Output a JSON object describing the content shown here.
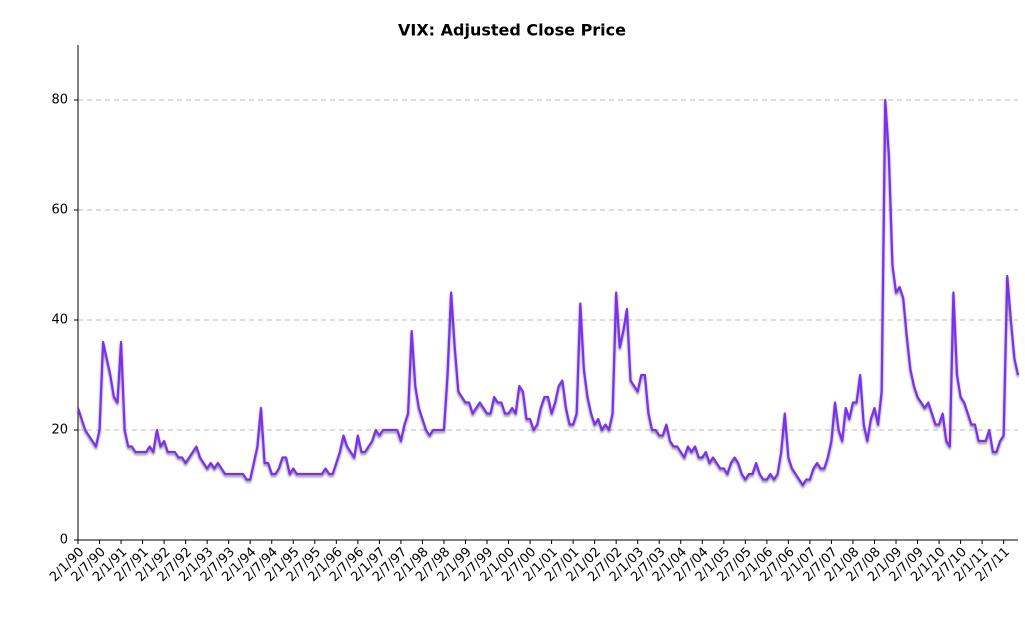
{
  "chart_data": {
    "type": "line",
    "title": "VIX: Adjusted Close Price",
    "categories": [
      "2/1/90",
      null,
      null,
      null,
      null,
      null,
      "2/7/90",
      null,
      null,
      null,
      null,
      null,
      "2/1/91",
      null,
      null,
      null,
      null,
      null,
      "2/7/91",
      null,
      null,
      null,
      null,
      null,
      "2/1/92",
      null,
      null,
      null,
      null,
      null,
      "2/7/92",
      null,
      null,
      null,
      null,
      null,
      "2/1/93",
      null,
      null,
      null,
      null,
      null,
      "2/7/93",
      null,
      null,
      null,
      null,
      null,
      "2/1/94",
      null,
      null,
      null,
      null,
      null,
      "2/7/94",
      null,
      null,
      null,
      null,
      null,
      "2/1/95",
      null,
      null,
      null,
      null,
      null,
      "2/7/95",
      null,
      null,
      null,
      null,
      null,
      "2/1/96",
      null,
      null,
      null,
      null,
      null,
      "2/7/96",
      null,
      null,
      null,
      null,
      null,
      "2/1/97",
      null,
      null,
      null,
      null,
      null,
      "2/7/97",
      null,
      null,
      null,
      null,
      null,
      "2/1/98",
      null,
      null,
      null,
      null,
      null,
      "2/7/98",
      null,
      null,
      null,
      null,
      null,
      "2/1/99",
      null,
      null,
      null,
      null,
      null,
      "2/7/99",
      null,
      null,
      null,
      null,
      null,
      "2/1/00",
      null,
      null,
      null,
      null,
      null,
      "2/7/00",
      null,
      null,
      null,
      null,
      null,
      "2/1/01",
      null,
      null,
      null,
      null,
      null,
      "2/7/01",
      null,
      null,
      null,
      null,
      null,
      "2/1/02",
      null,
      null,
      null,
      null,
      null,
      "2/7/02",
      null,
      null,
      null,
      null,
      null,
      "2/1/03",
      null,
      null,
      null,
      null,
      null,
      "2/7/03",
      null,
      null,
      null,
      null,
      null,
      "2/1/04",
      null,
      null,
      null,
      null,
      null,
      "2/7/04",
      null,
      null,
      null,
      null,
      null,
      "2/1/05",
      null,
      null,
      null,
      null,
      null,
      "2/7/05",
      null,
      null,
      null,
      null,
      null,
      "2/1/06",
      null,
      null,
      null,
      null,
      null,
      "2/7/06",
      null,
      null,
      null,
      null,
      null,
      "2/1/07",
      null,
      null,
      null,
      null,
      null,
      "2/7/07",
      null,
      null,
      null,
      null,
      null,
      "2/1/08",
      null,
      null,
      null,
      null,
      null,
      "2/7/08",
      null,
      null,
      null,
      null,
      null,
      "2/1/09",
      null,
      null,
      null,
      null,
      null,
      "2/7/09",
      null,
      null,
      null,
      null,
      null,
      "2/1/10",
      null,
      null,
      null,
      null,
      null,
      "2/7/10",
      null,
      null,
      null,
      null,
      null,
      "2/1/11",
      null,
      null,
      null,
      null,
      null,
      "2/7/11",
      null,
      null,
      null,
      null
    ],
    "series": [
      {
        "name": "VIX",
        "color": "#7b2ff2",
        "values": [
          24,
          22,
          20,
          19,
          18,
          17,
          20,
          36,
          33,
          30,
          26,
          25,
          36,
          20,
          17,
          17,
          16,
          16,
          16,
          16,
          17,
          16,
          20,
          17,
          18,
          16,
          16,
          16,
          15,
          15,
          14,
          15,
          16,
          17,
          15,
          14,
          13,
          14,
          13,
          14,
          13,
          12,
          12,
          12,
          12,
          12,
          12,
          11,
          11,
          14,
          17,
          24,
          14,
          14,
          12,
          12,
          13,
          15,
          15,
          12,
          13,
          12,
          12,
          12,
          12,
          12,
          12,
          12,
          12,
          13,
          12,
          12,
          14,
          16,
          19,
          17,
          16,
          15,
          19,
          16,
          16,
          17,
          18,
          20,
          19,
          20,
          20,
          20,
          20,
          20,
          18,
          21,
          23,
          38,
          28,
          24,
          22,
          20,
          19,
          20,
          20,
          20,
          20,
          30,
          45,
          35,
          27,
          26,
          25,
          25,
          23,
          24,
          25,
          24,
          23,
          23,
          26,
          25,
          25,
          23,
          23,
          24,
          23,
          28,
          27,
          22,
          22,
          20,
          21,
          24,
          26,
          26,
          23,
          25,
          28,
          29,
          24,
          21,
          21,
          23,
          43,
          31,
          26,
          23,
          21,
          22,
          20,
          21,
          20,
          23,
          45,
          35,
          38,
          42,
          29,
          28,
          27,
          30,
          30,
          23,
          20,
          20,
          19,
          19,
          21,
          18,
          17,
          17,
          16,
          15,
          17,
          16,
          17,
          15,
          15,
          16,
          14,
          15,
          14,
          13,
          13,
          12,
          14,
          15,
          14,
          12,
          11,
          12,
          12,
          14,
          12,
          11,
          11,
          12,
          11,
          12,
          16,
          23,
          15,
          13,
          12,
          11,
          10,
          11,
          11,
          13,
          14,
          13,
          13,
          15,
          18,
          25,
          20,
          18,
          24,
          22,
          25,
          25,
          30,
          21,
          18,
          22,
          24,
          21,
          27,
          80,
          70,
          50,
          45,
          46,
          44,
          37,
          31,
          28,
          26,
          25,
          24,
          25,
          23,
          21,
          21,
          23,
          18,
          17,
          45,
          30,
          26,
          25,
          23,
          21,
          21,
          18,
          18,
          18,
          20,
          16,
          16,
          18,
          19,
          48,
          40,
          33,
          30
        ]
      }
    ],
    "ylim": [
      0,
      90
    ],
    "yticks": [
      0,
      20,
      40,
      60,
      80
    ],
    "grid": true
  }
}
